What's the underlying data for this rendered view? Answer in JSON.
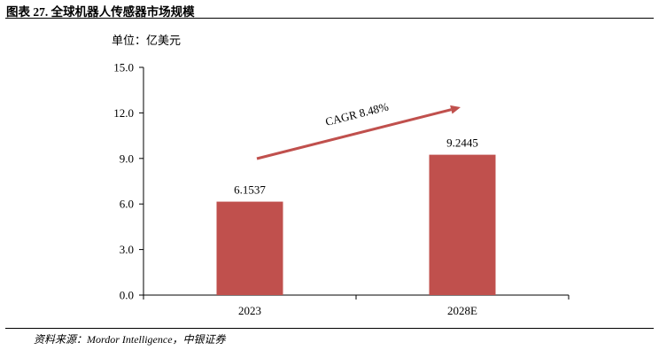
{
  "figure": {
    "title": "图表 27. 全球机器人传感器市场规模",
    "source": "资料来源：Mordor Intelligence，中银证券"
  },
  "chart_data": {
    "type": "bar",
    "unit_label": "单位：亿美元",
    "categories": [
      "2023",
      "2028E"
    ],
    "values": [
      6.1537,
      9.2445
    ],
    "data_labels": [
      "6.1537",
      "9.2445"
    ],
    "ylim": [
      0,
      15
    ],
    "yticks": [
      "0.0",
      "3.0",
      "6.0",
      "9.0",
      "12.0",
      "15.0"
    ],
    "grid": false,
    "annotation": "CAGR 8.48%",
    "colors": {
      "bar": "#C0504D",
      "arrow": "#C0504D"
    }
  }
}
